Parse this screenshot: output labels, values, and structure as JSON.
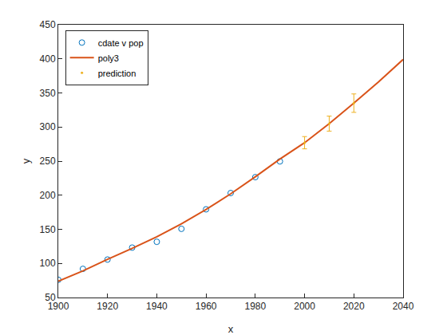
{
  "chart_data": {
    "type": "scatter",
    "x_label": "x",
    "y_label": "y",
    "xlim": [
      1900,
      2040
    ],
    "xticks": [
      1900,
      1920,
      1940,
      1960,
      1980,
      2000,
      2020,
      2040
    ],
    "ylim": [
      50,
      450
    ],
    "yticks": [
      50,
      100,
      150,
      200,
      250,
      300,
      350,
      400,
      450
    ],
    "grid": false,
    "legend": "northwest",
    "series": [
      {
        "name": "cdate v pop",
        "type": "scatter",
        "marker": "circle",
        "color": "#0072BD",
        "x": [
          1900,
          1910,
          1920,
          1930,
          1940,
          1950,
          1960,
          1970,
          1980,
          1990
        ],
        "values": [
          76,
          92,
          105.7,
          123.2,
          131.7,
          150.7,
          179.3,
          203.2,
          226.5,
          249.6
        ]
      },
      {
        "name": "poly3",
        "type": "line",
        "line_style": "solid",
        "color": "#D95319",
        "x": [
          1900,
          1910,
          1920,
          1930,
          1940,
          1950,
          1960,
          1970,
          1980,
          1990,
          2000,
          2010,
          2020,
          2030,
          2040
        ],
        "values": [
          74,
          89,
          106,
          122,
          139,
          158,
          179,
          202,
          227,
          253,
          277,
          305,
          335,
          366,
          399
        ]
      },
      {
        "name": "prediction",
        "type": "errorbar",
        "marker": "point",
        "color": "#EDB120",
        "x": [
          2000,
          2010,
          2020
        ],
        "values": [
          277,
          305,
          335
        ],
        "error": [
          9,
          11,
          13.5
        ]
      }
    ]
  }
}
